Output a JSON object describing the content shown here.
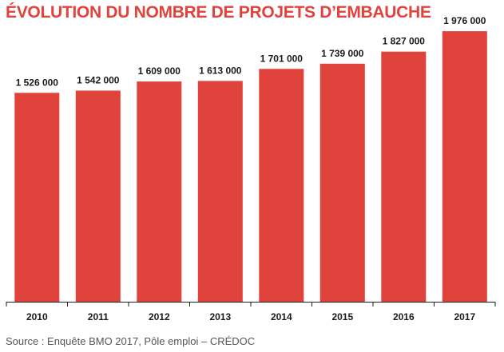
{
  "colors": {
    "title": "#e0423c",
    "bar": "#e0423c",
    "axis": "#1a1a1a",
    "source": "#555555"
  },
  "source": "Source : Enquête BMO 2017, Pôle emploi – CRÉDOC",
  "chart_data": {
    "type": "bar",
    "title": "ÉVOLUTION DU NOMBRE DE PROJETS D’EMBAUCHE",
    "xlabel": "",
    "ylabel": "",
    "categories": [
      "2010",
      "2011",
      "2012",
      "2013",
      "2014",
      "2015",
      "2016",
      "2017"
    ],
    "values": [
      1526000,
      1542000,
      1609000,
      1613000,
      1701000,
      1739000,
      1827000,
      1976000
    ],
    "value_labels": [
      "1 526 000",
      "1 542 000",
      "1 609 000",
      "1 613 000",
      "1 701 000",
      "1 739 000",
      "1 827 000",
      "1 976 000"
    ],
    "ylim": [
      0,
      2000000
    ],
    "grid": false,
    "legend": "none"
  }
}
